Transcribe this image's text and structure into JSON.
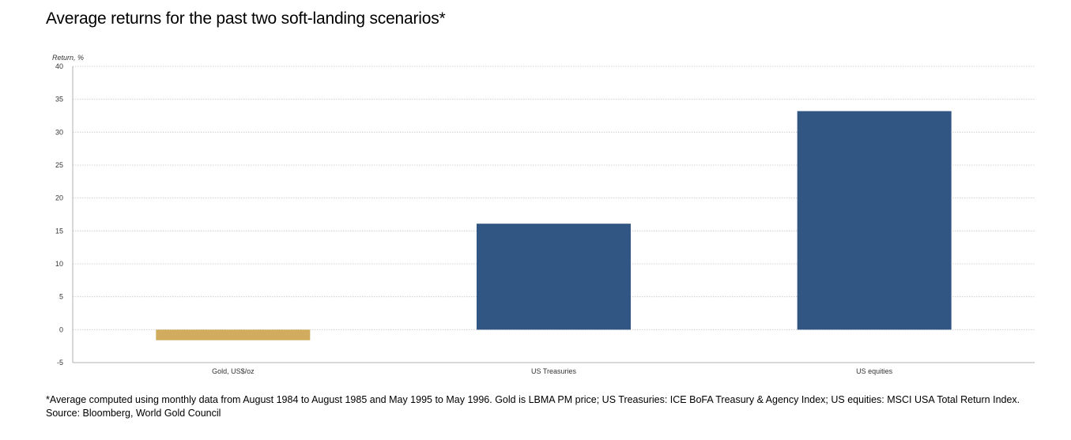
{
  "colors": {
    "gold": "#d1ac5f",
    "navy": "#315683",
    "grid": "#c8c8c8",
    "axis": "#b0b0b0",
    "text": "#333333"
  },
  "chart_data": {
    "type": "bar",
    "title": "Average returns for the past two soft-landing scenarios*",
    "ylabel": "Return, %",
    "xlabel": "",
    "categories": [
      "Gold, US$/oz",
      "US Treasuries",
      "US equities"
    ],
    "values": [
      -1.6,
      16.1,
      33.2
    ],
    "bar_colors": [
      "#d1ac5f",
      "#315683",
      "#315683"
    ],
    "ylim": [
      -5,
      40
    ],
    "yticks": [
      -5,
      0,
      5,
      10,
      15,
      20,
      25,
      30,
      35,
      40
    ],
    "grid": true,
    "legend": "none"
  },
  "footnote": {
    "line1": "*Average computed using monthly data from August 1984 to August 1985 and May 1995 to May 1996. Gold is LBMA PM price; US Treasuries: ICE BoFA Treasury & Agency Index; US equities: MSCI USA Total Return Index.",
    "line2": "Source: Bloomberg, World Gold Council"
  }
}
